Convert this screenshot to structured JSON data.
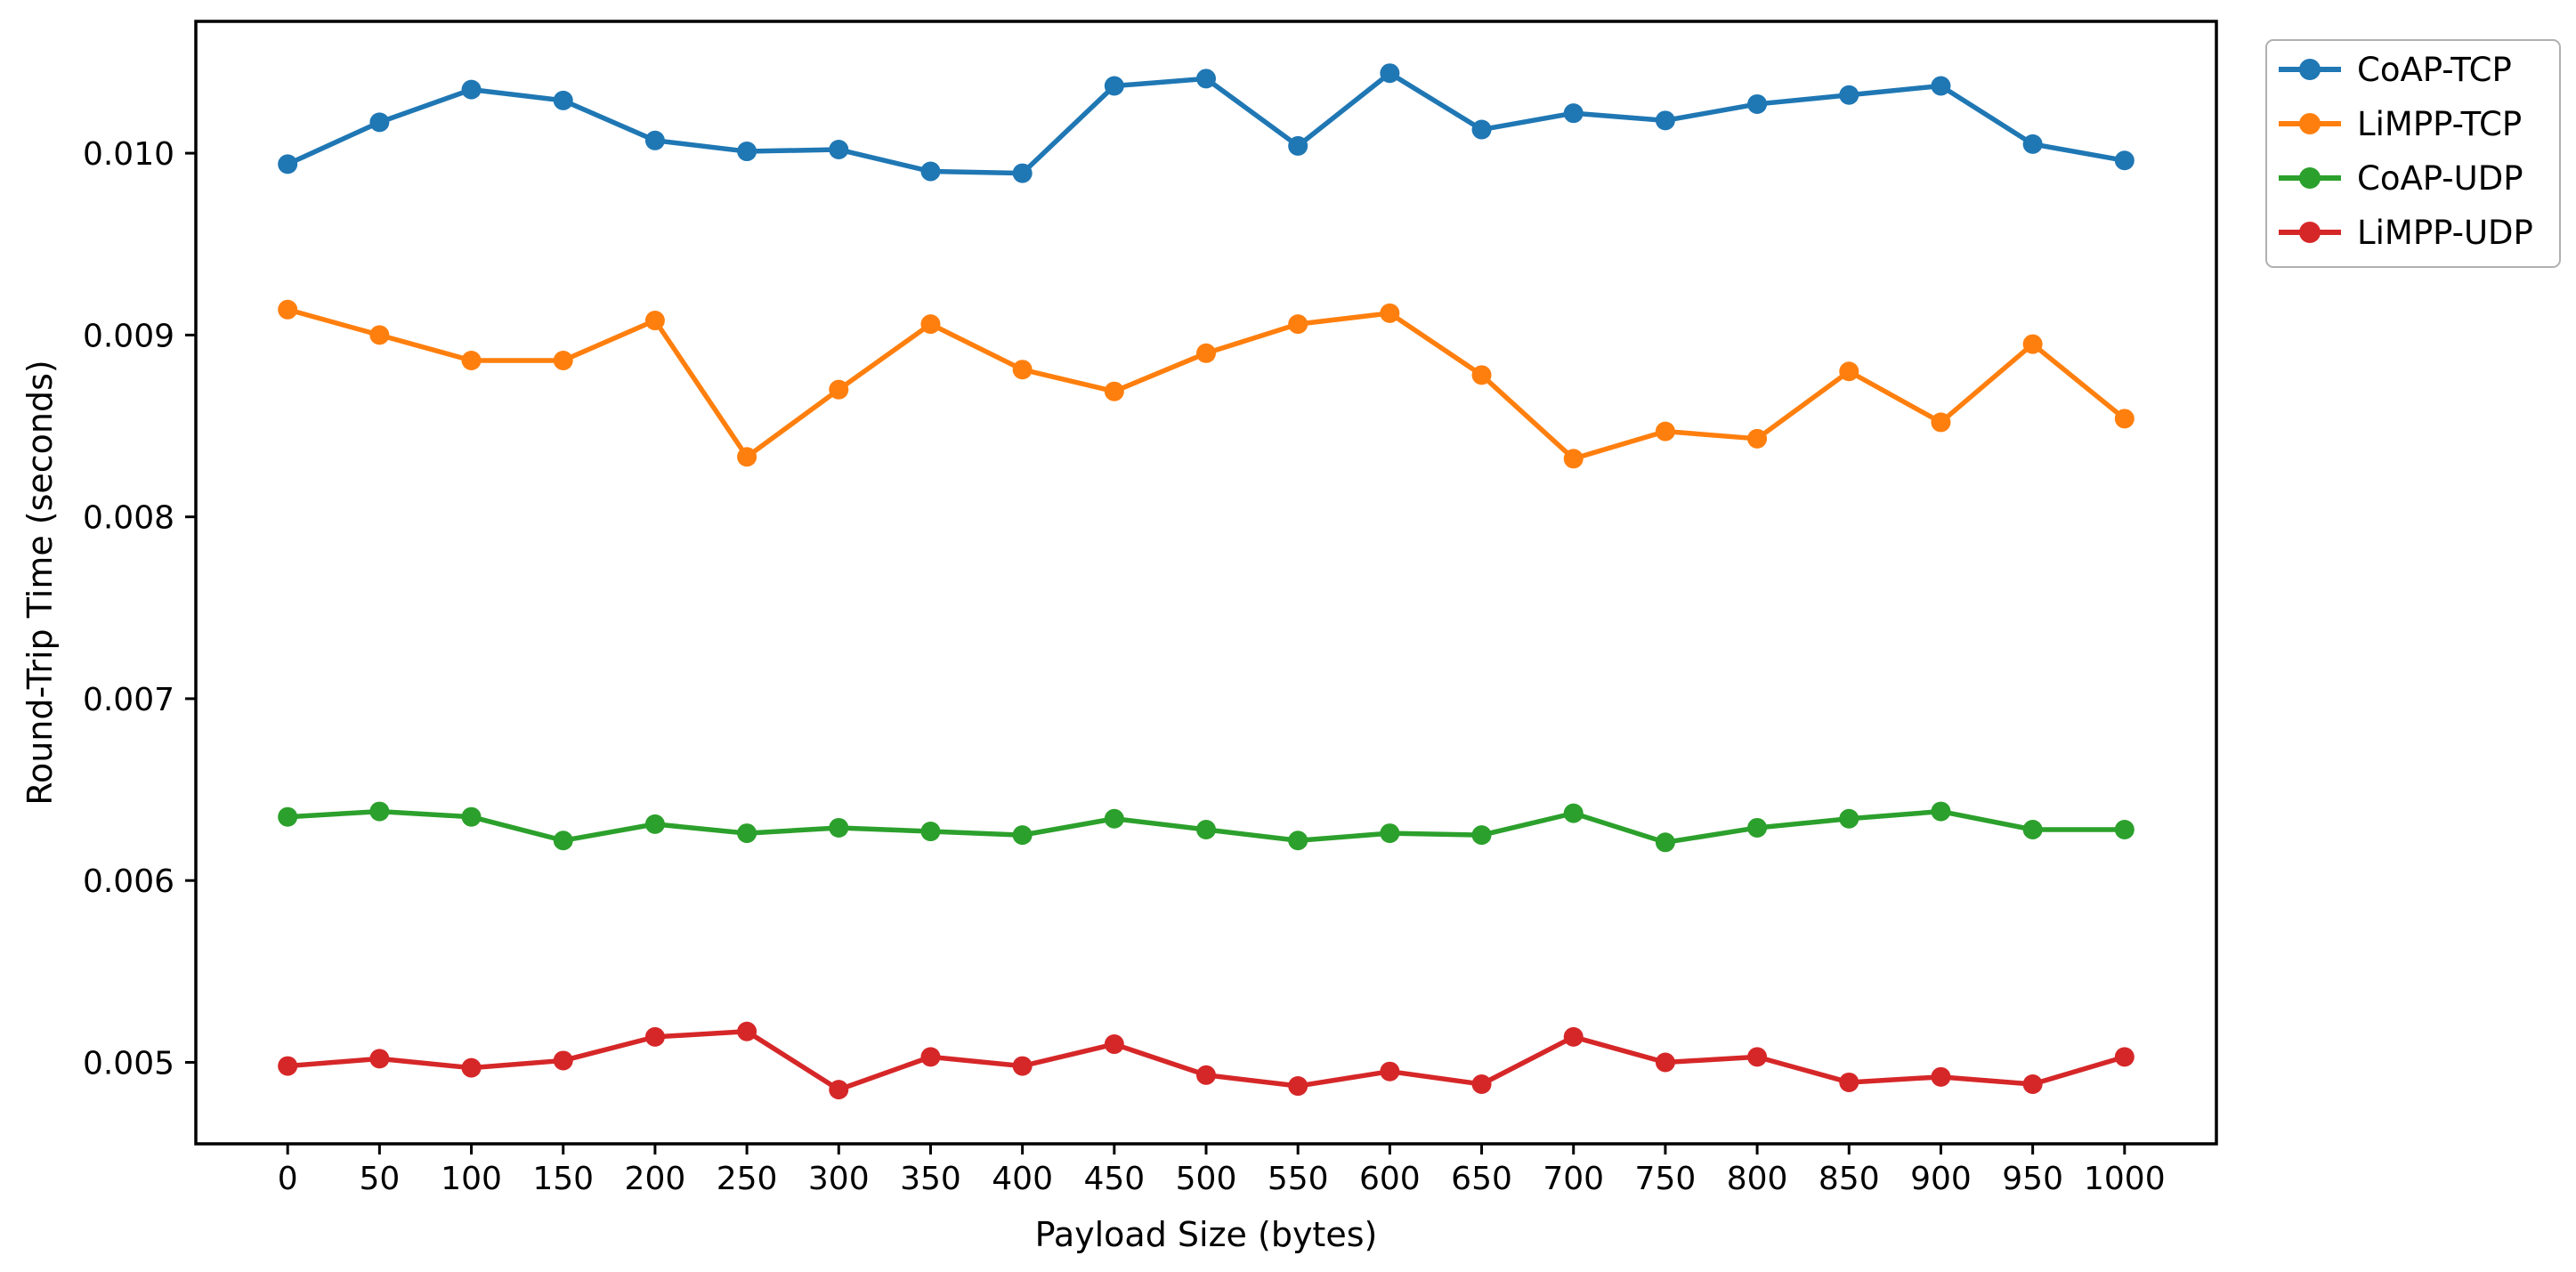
{
  "figure": {
    "background": "#ffffff",
    "text_color": "#000000",
    "spine_color": "#000000"
  },
  "chart_data": {
    "type": "line",
    "title": "",
    "xlabel": "Payload Size (bytes)",
    "ylabel": "Round-Trip Time (seconds)",
    "x": [
      0,
      50,
      100,
      150,
      200,
      250,
      300,
      350,
      400,
      450,
      500,
      550,
      600,
      650,
      700,
      750,
      800,
      850,
      900,
      950,
      1000
    ],
    "series": [
      {
        "name": "CoAP-TCP",
        "color": "#1f77b4",
        "marker": "circle",
        "values": [
          0.00994,
          0.01017,
          0.01035,
          0.01029,
          0.01007,
          0.01001,
          0.01002,
          0.0099,
          0.00989,
          0.01037,
          0.01041,
          0.01004,
          0.01044,
          0.01013,
          0.01022,
          0.01018,
          0.01027,
          0.01032,
          0.01037,
          0.01005,
          0.00996
        ]
      },
      {
        "name": "LiMPP-TCP",
        "color": "#ff7f0e",
        "marker": "circle",
        "values": [
          0.00914,
          0.009,
          0.00886,
          0.00886,
          0.00908,
          0.00833,
          0.0087,
          0.00906,
          0.00881,
          0.00869,
          0.0089,
          0.00906,
          0.00912,
          0.00878,
          0.00832,
          0.00847,
          0.00843,
          0.0088,
          0.00852,
          0.00895,
          0.00854
        ]
      },
      {
        "name": "CoAP-UDP",
        "color": "#2ca02c",
        "marker": "circle",
        "values": [
          0.00635,
          0.00638,
          0.00635,
          0.00622,
          0.00631,
          0.00626,
          0.00629,
          0.00627,
          0.00625,
          0.00634,
          0.00628,
          0.00622,
          0.00626,
          0.00625,
          0.00637,
          0.00621,
          0.00629,
          0.00634,
          0.00638,
          0.00628,
          0.00628
        ]
      },
      {
        "name": "LiMPP-UDP",
        "color": "#d62728",
        "marker": "circle",
        "values": [
          0.00498,
          0.00502,
          0.00497,
          0.00501,
          0.00514,
          0.00517,
          0.00485,
          0.00503,
          0.00498,
          0.0051,
          0.00493,
          0.00487,
          0.00495,
          0.00488,
          0.00514,
          0.005,
          0.00503,
          0.00489,
          0.00492,
          0.00488,
          0.00503
        ]
      }
    ],
    "x_ticks": [
      0,
      50,
      100,
      150,
      200,
      250,
      300,
      350,
      400,
      450,
      500,
      550,
      600,
      650,
      700,
      750,
      800,
      850,
      900,
      950,
      1000
    ],
    "y_ticks": [
      0.005,
      0.006,
      0.007,
      0.008,
      0.009,
      0.01
    ],
    "y_tick_labels": [
      "0.005",
      "0.006",
      "0.007",
      "0.008",
      "0.009",
      "0.010"
    ],
    "xlim": [
      -50,
      1050
    ],
    "ylim": [
      0.004552,
      0.010725
    ],
    "grid": false,
    "legend": {
      "entries": [
        "CoAP-TCP",
        "LiMPP-TCP",
        "CoAP-UDP",
        "LiMPP-UDP"
      ],
      "position": "upper right, outside plot area",
      "border_color": "#b0b0b0"
    }
  }
}
